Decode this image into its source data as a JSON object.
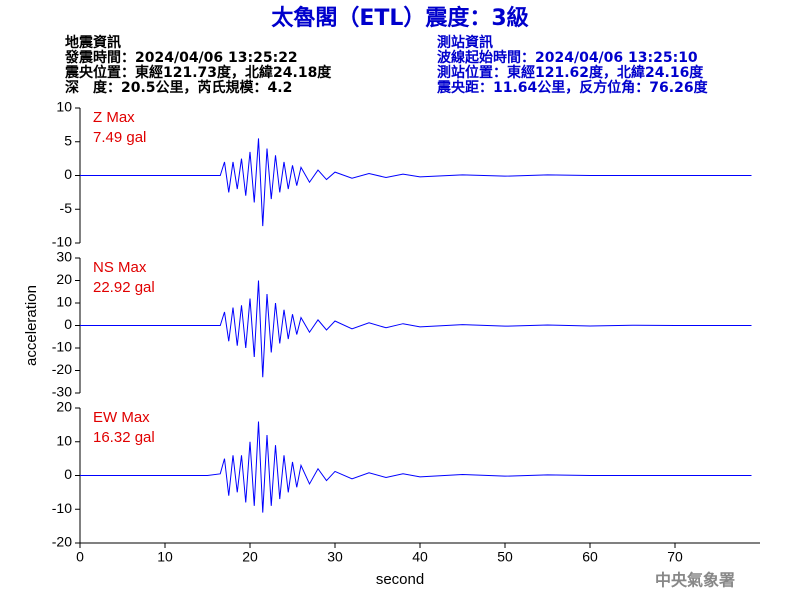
{
  "title": "太魯閣（ETL）震度：3級",
  "header": {
    "left": [
      "地震資訊",
      "發震時間：2024/04/06 13:25:22",
      "震央位置：東經121.73度，北緯24.18度",
      "深　度：20.5公里，芮氏規模：4.2"
    ],
    "right": [
      "測站資訊",
      "波線起始時間：2024/04/06 13:25:10",
      "測站位置：東經121.62度，北緯24.16度",
      "震央距：11.64公里，反方位角：76.26度"
    ]
  },
  "watermark": "中央氣象署",
  "chart_data": [
    {
      "type": "line",
      "annotation": [
        "Z Max",
        "7.49 gal"
      ],
      "xlim": [
        0,
        80
      ],
      "ylim": [
        -10,
        10
      ],
      "yticks": [
        -10,
        -5,
        0,
        5,
        10
      ],
      "x": [
        0,
        5,
        10,
        15,
        16.5,
        17,
        17.5,
        18,
        18.5,
        19,
        19.5,
        20,
        20.5,
        21,
        21.5,
        22,
        22.5,
        23,
        23.5,
        24,
        24.5,
        25,
        25.5,
        26,
        27,
        28,
        29,
        30,
        32,
        34,
        36,
        38,
        40,
        45,
        50,
        55,
        60,
        65,
        70,
        75,
        79
      ],
      "series": [
        {
          "color": "#0000ff",
          "values": [
            0,
            0,
            0,
            0,
            0,
            2,
            -2.5,
            2,
            -2,
            2.5,
            -3,
            3.5,
            -4,
            5.5,
            -7.5,
            4,
            -3.5,
            3,
            -2.5,
            2,
            -2,
            1.5,
            -1.5,
            1.2,
            -1,
            0.8,
            -0.6,
            0.5,
            -0.4,
            0.3,
            -0.3,
            0.2,
            -0.2,
            0.1,
            -0.1,
            0.1,
            0,
            0,
            0,
            0,
            0
          ]
        }
      ]
    },
    {
      "type": "line",
      "annotation": [
        "NS Max",
        "22.92 gal"
      ],
      "y_label": "acceleration",
      "xlim": [
        0,
        80
      ],
      "ylim": [
        -30,
        30
      ],
      "yticks": [
        -30,
        -20,
        -10,
        0,
        10,
        20,
        30
      ],
      "x": [
        0,
        5,
        10,
        15,
        16.5,
        17,
        17.5,
        18,
        18.5,
        19,
        19.5,
        20,
        20.5,
        21,
        21.5,
        22,
        22.5,
        23,
        23.5,
        24,
        24.5,
        25,
        25.5,
        26,
        27,
        28,
        29,
        30,
        32,
        34,
        36,
        38,
        40,
        45,
        50,
        55,
        60,
        65,
        70,
        75,
        79
      ],
      "series": [
        {
          "color": "#0000ff",
          "values": [
            0,
            0,
            0,
            0,
            0,
            6,
            -7,
            8,
            -9,
            9,
            -10,
            12,
            -14,
            20,
            -23,
            14,
            -12,
            10,
            -8,
            7,
            -6,
            5,
            -4,
            3.5,
            -3,
            2.5,
            -2,
            2,
            -1.5,
            1.2,
            -1,
            0.8,
            -0.6,
            0.4,
            -0.3,
            0.2,
            -0.2,
            0.1,
            0,
            0,
            0
          ]
        }
      ]
    },
    {
      "type": "line",
      "annotation": [
        "EW Max",
        "16.32 gal"
      ],
      "x_label": "second",
      "xlim": [
        0,
        80
      ],
      "xticks": [
        0,
        10,
        20,
        30,
        40,
        50,
        60,
        70
      ],
      "ylim": [
        -20,
        20
      ],
      "yticks": [
        -20,
        -10,
        0,
        10,
        20
      ],
      "x": [
        0,
        5,
        10,
        15,
        16.5,
        17,
        17.5,
        18,
        18.5,
        19,
        19.5,
        20,
        20.5,
        21,
        21.5,
        22,
        22.5,
        23,
        23.5,
        24,
        24.5,
        25,
        25.5,
        26,
        27,
        28,
        29,
        30,
        32,
        34,
        36,
        38,
        40,
        45,
        50,
        55,
        60,
        65,
        70,
        75,
        79
      ],
      "series": [
        {
          "color": "#0000ff",
          "values": [
            0,
            0,
            0,
            0,
            0.5,
            5,
            -6,
            6,
            -5,
            6,
            -8,
            10,
            -9,
            16,
            -11,
            12,
            -9,
            9,
            -7,
            6,
            -5,
            4,
            -3.5,
            3,
            -2.5,
            2,
            -1.5,
            1.2,
            -1,
            0.8,
            -0.6,
            0.5,
            -0.4,
            0.3,
            -0.2,
            0.2,
            0,
            0,
            0,
            0,
            0
          ]
        }
      ]
    }
  ]
}
